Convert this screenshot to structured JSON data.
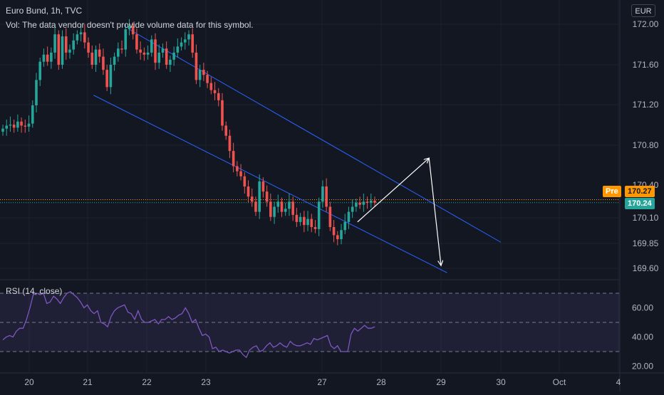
{
  "header": {
    "title": "Euro Bund, 1h, TVC",
    "vol_note": "Vol: The data vendor doesn't provide volume data for this symbol.",
    "currency": "EUR"
  },
  "rsi": {
    "label": "RSI (14, close)",
    "ticks": [
      "60.00",
      "40.00",
      "20.00"
    ],
    "values": [
      38,
      40,
      41,
      40,
      44,
      46,
      46,
      52,
      60,
      69,
      70,
      69,
      70,
      63,
      64,
      68,
      66,
      63,
      67,
      70,
      71,
      69,
      67,
      64,
      60,
      62,
      58,
      56,
      58,
      50,
      49,
      47,
      54,
      58,
      60,
      61,
      62,
      57,
      56,
      52,
      58,
      52,
      50,
      50,
      51,
      52,
      49,
      52,
      52,
      54,
      52,
      53,
      55,
      56,
      60,
      56,
      50,
      52,
      46,
      41,
      42,
      40,
      32,
      33,
      30,
      31,
      30,
      29,
      30,
      31,
      31,
      28,
      26,
      31,
      33,
      34,
      30,
      31,
      34,
      36,
      33,
      34,
      36,
      34,
      33,
      37,
      35,
      34,
      34,
      35,
      36,
      35,
      39,
      38,
      39,
      40,
      41,
      34,
      32,
      34,
      30,
      30,
      30,
      42,
      46,
      44,
      46,
      48,
      46,
      46,
      47
    ]
  },
  "badges": {
    "pre_label": "Pre",
    "pre_value": "170.27",
    "last_value": "170.24",
    "partial_value": "170.40"
  },
  "colors": {
    "up": "#26a69a",
    "down": "#ef5350",
    "channel": "#2962ff",
    "rsi_line": "#7e57c2",
    "rsi_band": "#7e57c2",
    "pre_badge": "#ff9800",
    "last_badge": "#26a69a",
    "arrow": "#ffffff"
  },
  "chart_data": {
    "type": "candlestick",
    "title": "Euro Bund, 1h, TVC",
    "y_ticks": [
      "172.00",
      "171.60",
      "171.20",
      "170.80",
      "170.10",
      "169.85",
      "169.60"
    ],
    "x_ticks": [
      "20",
      "21",
      "22",
      "23",
      "27",
      "28",
      "29",
      "30",
      "Oct",
      "4"
    ],
    "last_price": 170.24,
    "pre_price": 170.27,
    "close_series": [
      170.97,
      171.0,
      171.01,
      170.98,
      171.04,
      171.0,
      170.99,
      171.02,
      171.2,
      171.45,
      171.63,
      171.7,
      171.63,
      171.72,
      171.9,
      171.6,
      171.88,
      171.72,
      171.75,
      171.84,
      171.9,
      171.92,
      171.82,
      171.72,
      171.6,
      171.75,
      171.68,
      171.55,
      171.38,
      171.6,
      171.68,
      171.76,
      171.75,
      171.95,
      171.98,
      171.9,
      171.75,
      171.72,
      171.7,
      171.72,
      171.85,
      171.62,
      171.72,
      171.76,
      171.6,
      171.65,
      171.72,
      171.78,
      171.82,
      171.85,
      171.9,
      171.72,
      171.45,
      171.55,
      171.5,
      171.42,
      171.35,
      171.32,
      171.25,
      171.0,
      170.9,
      170.75,
      170.6,
      170.55,
      170.5,
      170.4,
      170.3,
      170.25,
      170.15,
      170.45,
      170.35,
      170.25,
      170.1,
      170.2,
      170.25,
      170.15,
      170.18,
      170.25,
      170.12,
      170.05,
      170.1,
      170.02,
      170.08,
      170.0,
      169.98,
      170.25,
      170.4,
      170.2,
      170.0,
      169.92,
      169.88,
      169.97,
      170.05,
      170.15,
      170.2,
      170.24,
      170.22,
      170.25,
      170.24,
      170.26,
      170.24
    ],
    "series": [
      {
        "name": "RSI (14, close)",
        "values": [
          38,
          40,
          41,
          40,
          44,
          46,
          46,
          52,
          60,
          69,
          70,
          69,
          70,
          63,
          64,
          68,
          66,
          63,
          67,
          70,
          71,
          69,
          67,
          64,
          60,
          62,
          58,
          56,
          58,
          50,
          49,
          47,
          54,
          58,
          60,
          61,
          62,
          57,
          56,
          52,
          58,
          52,
          50,
          50,
          51,
          52,
          49,
          52,
          52,
          54,
          52,
          53,
          55,
          56,
          60,
          56,
          50,
          52,
          46,
          41,
          42,
          40,
          32,
          33,
          30,
          31,
          30,
          29,
          30,
          31,
          31,
          28,
          26,
          31,
          33,
          34,
          30,
          31,
          34,
          36,
          33,
          34,
          36,
          34,
          33,
          37,
          35,
          34,
          34,
          35,
          36,
          35,
          39,
          38,
          39,
          40,
          41,
          34,
          32,
          34,
          30,
          30,
          30,
          42,
          46,
          44,
          46,
          48,
          46,
          46,
          47
        ]
      }
    ],
    "rsi_ylim": [
      15,
      75
    ],
    "rsi_bands": [
      70,
      50,
      30
    ],
    "channel": {
      "upper": [
        [
          "21.7",
          171.95
        ],
        [
          "30.5",
          169.85
        ]
      ],
      "lower": [
        [
          "21.1",
          171.3
        ],
        [
          "29.1",
          169.55
        ]
      ]
    },
    "projection": [
      [
        170.05,
        "27.6"
      ],
      [
        170.68,
        "28.8"
      ],
      [
        169.62,
        "29.0"
      ]
    ]
  }
}
